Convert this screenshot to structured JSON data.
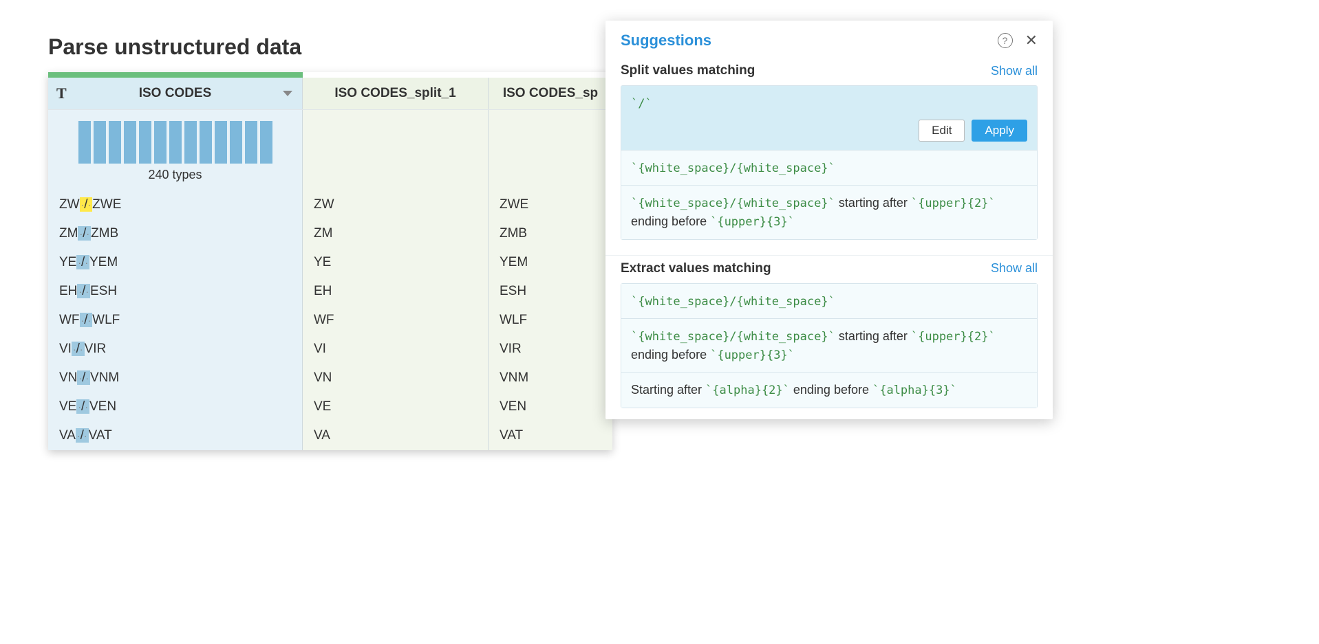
{
  "page_title": "Parse unstructured data",
  "table": {
    "highlight_colors": {
      "first_row": "#ffe94a",
      "other_rows": "#9fc9e0"
    },
    "columns": [
      {
        "label": "ISO CODES",
        "bg": "#d9ecf4",
        "has_sort": true,
        "type_icon": "T"
      },
      {
        "label": "ISO CODES_split_1",
        "bg": "#edf3e6"
      },
      {
        "label": "ISO CODES_sp",
        "bg": "#edf3e6"
      }
    ],
    "sparkline_bars": 13,
    "sparkline_color": "#7db8db",
    "summary_text": "240 types",
    "rows": [
      {
        "c1a": "ZW",
        "c1b": "ZWE",
        "c2": "ZW",
        "c3": "ZWE"
      },
      {
        "c1a": "ZM",
        "c1b": "ZMB",
        "c2": "ZM",
        "c3": "ZMB"
      },
      {
        "c1a": "YE",
        "c1b": "YEM",
        "c2": "YE",
        "c3": "YEM"
      },
      {
        "c1a": "EH",
        "c1b": "ESH",
        "c2": "EH",
        "c3": "ESH"
      },
      {
        "c1a": "WF",
        "c1b": "WLF",
        "c2": "WF",
        "c3": "WLF"
      },
      {
        "c1a": "VI",
        "c1b": "VIR",
        "c2": "VI",
        "c3": "VIR"
      },
      {
        "c1a": "VN",
        "c1b": "VNM",
        "c2": "VN",
        "c3": "VNM"
      },
      {
        "c1a": "VE",
        "c1b": "VEN",
        "c2": "VE",
        "c3": "VEN"
      },
      {
        "c1a": "VA",
        "c1b": "VAT",
        "c2": "VA",
        "c3": "VAT"
      }
    ]
  },
  "panel": {
    "title": "Suggestions",
    "sections": [
      {
        "title": "Split values matching",
        "show_all_label": "Show all",
        "items": [
          {
            "selected": true,
            "segments": [
              {
                "t": "`/`",
                "code": true
              }
            ],
            "edit_label": "Edit",
            "apply_label": "Apply"
          },
          {
            "segments": [
              {
                "t": "`{white_space}/{white_space}`",
                "code": true
              }
            ]
          },
          {
            "segments": [
              {
                "t": "`{white_space}/{white_space}`",
                "code": true
              },
              {
                "t": " starting after ",
                "code": false
              },
              {
                "t": "`{upper}{2}`",
                "code": true
              },
              {
                "t": " ending before ",
                "code": false
              },
              {
                "t": "`{upper}{3}`",
                "code": true
              }
            ]
          }
        ]
      },
      {
        "title": "Extract values matching",
        "show_all_label": "Show all",
        "items": [
          {
            "segments": [
              {
                "t": "`{white_space}/{white_space}`",
                "code": true
              }
            ]
          },
          {
            "segments": [
              {
                "t": "`{white_space}/{white_space}`",
                "code": true
              },
              {
                "t": " starting after ",
                "code": false
              },
              {
                "t": "`{upper}{2}`",
                "code": true
              },
              {
                "t": " ending before ",
                "code": false
              },
              {
                "t": "`{upper}{3}`",
                "code": true
              }
            ]
          },
          {
            "segments": [
              {
                "t": "Starting after ",
                "code": false
              },
              {
                "t": "`{alpha}{2}`",
                "code": true
              },
              {
                "t": " ending before ",
                "code": false
              },
              {
                "t": "`{alpha}{3}`",
                "code": true
              }
            ]
          }
        ]
      }
    ]
  }
}
